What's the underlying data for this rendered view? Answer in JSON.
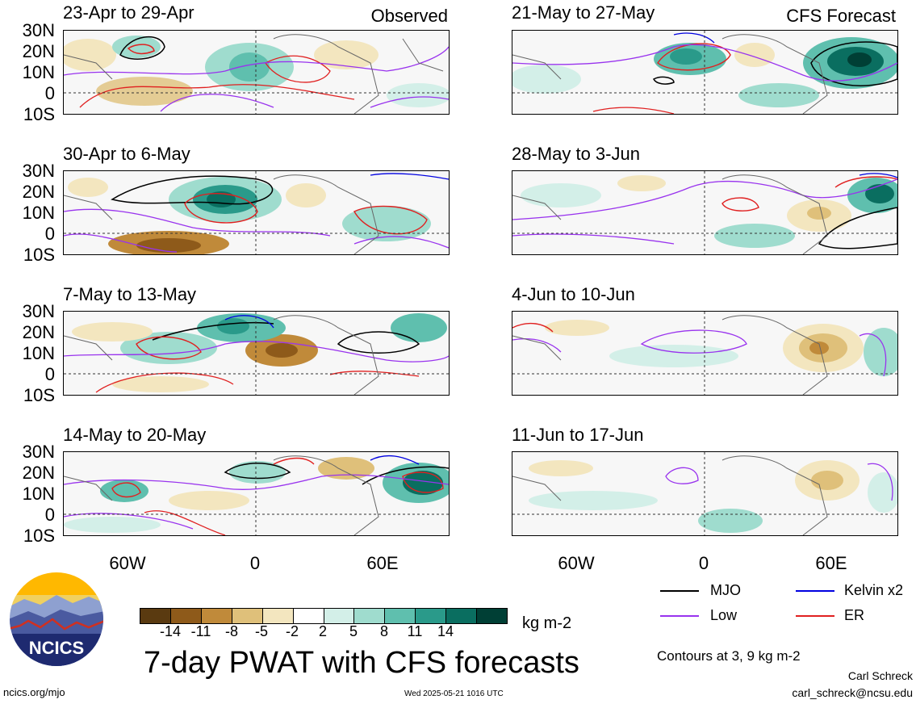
{
  "panels": [
    {
      "id": "p1",
      "title": "23-Apr to 29-Apr",
      "tag": "Observed"
    },
    {
      "id": "p2",
      "title": "30-Apr to 6-May",
      "tag": ""
    },
    {
      "id": "p3",
      "title": "7-May to 13-May",
      "tag": ""
    },
    {
      "id": "p4",
      "title": "14-May to 20-May",
      "tag": ""
    },
    {
      "id": "p5",
      "title": "21-May to 27-May",
      "tag": "CFS Forecast"
    },
    {
      "id": "p6",
      "title": "28-May to 3-Jun",
      "tag": ""
    },
    {
      "id": "p7",
      "title": "4-Jun to 10-Jun",
      "tag": ""
    },
    {
      "id": "p8",
      "title": "11-Jun to 17-Jun",
      "tag": ""
    }
  ],
  "lat_labels": [
    "30N",
    "20N",
    "10N",
    "0",
    "10S"
  ],
  "lon_labels": [
    "60W",
    "0",
    "60E"
  ],
  "colorbar": {
    "colors": [
      "#5a3a10",
      "#8e5a1a",
      "#c08a3a",
      "#dfc07a",
      "#f3e6bf",
      "#ffffff",
      "#d3efe8",
      "#9fdcce",
      "#5fbfae",
      "#2a9a8a",
      "#0a6e60",
      "#003f35"
    ],
    "labels": [
      "-14",
      "-11",
      "-8",
      "-5",
      "-2",
      "2",
      "5",
      "8",
      "11",
      "14"
    ],
    "units": "kg m-2"
  },
  "legend": {
    "items": [
      {
        "label": "MJO",
        "color": "#000000"
      },
      {
        "label": "Kelvin x2",
        "color": "#0000e0"
      },
      {
        "label": "Low",
        "color": "#9933ee"
      },
      {
        "label": "ER",
        "color": "#e02020"
      }
    ],
    "contours_note": "Contours at 3, 9 kg m-2"
  },
  "main_title": "7-day PWAT with CFS forecasts",
  "logo_text": "NCICS",
  "footer": {
    "left": "ncics.org/mjo",
    "center": "Wed 2025-05-21 1016 UTC",
    "author": "Carl Schreck",
    "email": "carl_schreck@ncsu.edu"
  }
}
